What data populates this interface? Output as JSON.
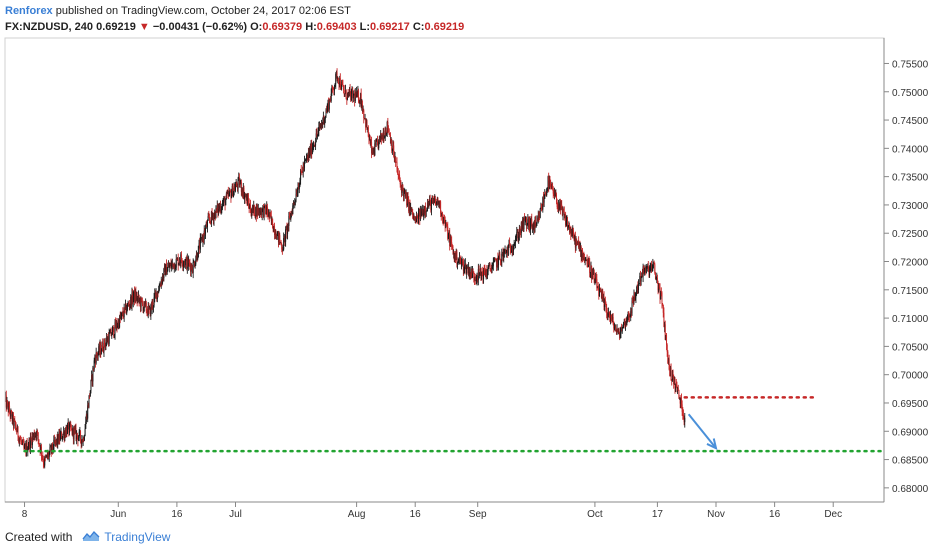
{
  "header": {
    "author": "Renforex",
    "published": "published on TradingView.com, October 24, 2017 02:06 EST",
    "symbol": "FX:NZDUSD, 240",
    "last": "0.69219",
    "change_arrow": "▼",
    "change": "−0.00431 (−0.62%)",
    "o_label": "O:",
    "o_val": "0.69379",
    "h_label": "H:",
    "h_val": "0.69403",
    "l_label": "L:",
    "l_val": "0.69217",
    "c_label": "C:",
    "c_val": "0.69219"
  },
  "footer": {
    "created_with": "Created with",
    "brand": "TradingView",
    "logo_icon": "tradingview-logo-icon"
  },
  "colors": {
    "up": "#1b1b1b",
    "down": "#c62828",
    "green_line": "#21a330",
    "red_line": "#c62828",
    "arrow": "#4a90d9",
    "grid": "#cfcfcf"
  },
  "chart_data": {
    "type": "candlestick",
    "ylim": [
      0.6775,
      0.7595
    ],
    "yticks": [
      "0.75500",
      "0.75000",
      "0.74500",
      "0.74000",
      "0.73500",
      "0.73000",
      "0.72500",
      "0.72000",
      "0.71500",
      "0.71000",
      "0.70500",
      "0.70000",
      "0.69500",
      "0.69000",
      "0.68500",
      "0.68000"
    ],
    "xticks": [
      "8",
      "Jun",
      "16",
      "Jul",
      "Aug",
      "16",
      "Sep",
      "Oct",
      "17",
      "Nov",
      "16",
      "Dec"
    ],
    "xtick_dates": [
      "2017-05-08",
      "2017-06-01",
      "2017-06-16",
      "2017-07-01",
      "2017-08-01",
      "2017-08-16",
      "2017-09-01",
      "2017-10-01",
      "2017-10-17",
      "2017-11-01",
      "2017-11-16",
      "2017-12-01"
    ],
    "xlim": [
      "2017-05-03",
      "2017-12-14"
    ],
    "price_path": [
      [
        "2017-05-03",
        0.6955
      ],
      [
        "2017-05-08",
        0.6865
      ],
      [
        "2017-05-11",
        0.69
      ],
      [
        "2017-05-13",
        0.6845
      ],
      [
        "2017-05-16",
        0.688
      ],
      [
        "2017-05-19",
        0.6905
      ],
      [
        "2017-05-23",
        0.6885
      ],
      [
        "2017-05-26",
        0.703
      ],
      [
        "2017-05-31",
        0.708
      ],
      [
        "2017-06-05",
        0.714
      ],
      [
        "2017-06-09",
        0.711
      ],
      [
        "2017-06-13",
        0.7185
      ],
      [
        "2017-06-17",
        0.7205
      ],
      [
        "2017-06-20",
        0.719
      ],
      [
        "2017-06-24",
        0.727
      ],
      [
        "2017-06-28",
        0.7305
      ],
      [
        "2017-07-02",
        0.734
      ],
      [
        "2017-07-05",
        0.729
      ],
      [
        "2017-07-09",
        0.729
      ],
      [
        "2017-07-13",
        0.7225
      ],
      [
        "2017-07-18",
        0.736
      ],
      [
        "2017-07-22",
        0.7425
      ],
      [
        "2017-07-24",
        0.746
      ],
      [
        "2017-07-27",
        0.753
      ],
      [
        "2017-07-29",
        0.7495
      ],
      [
        "2017-08-02",
        0.749
      ],
      [
        "2017-08-05",
        0.739
      ],
      [
        "2017-08-09",
        0.744
      ],
      [
        "2017-08-12",
        0.734
      ],
      [
        "2017-08-16",
        0.727
      ],
      [
        "2017-08-19",
        0.73
      ],
      [
        "2017-08-22",
        0.7305
      ],
      [
        "2017-08-26",
        0.721
      ],
      [
        "2017-08-31",
        0.7175
      ],
      [
        "2017-09-03",
        0.718
      ],
      [
        "2017-09-06",
        0.72
      ],
      [
        "2017-09-10",
        0.723
      ],
      [
        "2017-09-13",
        0.727
      ],
      [
        "2017-09-16",
        0.726
      ],
      [
        "2017-09-19",
        0.734
      ],
      [
        "2017-09-23",
        0.728
      ],
      [
        "2017-09-26",
        0.7235
      ],
      [
        "2017-09-29",
        0.72
      ],
      [
        "2017-10-03",
        0.713
      ],
      [
        "2017-10-07",
        0.707
      ],
      [
        "2017-10-10",
        0.711
      ],
      [
        "2017-10-13",
        0.718
      ],
      [
        "2017-10-16",
        0.719
      ],
      [
        "2017-10-18",
        0.7135
      ],
      [
        "2017-10-20",
        0.701
      ],
      [
        "2017-10-22",
        0.6975
      ],
      [
        "2017-10-24",
        0.6922
      ]
    ],
    "annotations": [
      {
        "type": "hline",
        "style": "dotted",
        "color": "green",
        "y": 0.6865,
        "x_from": "2017-05-08",
        "x_to": "2017-12-14"
      },
      {
        "type": "hline",
        "style": "dotted",
        "color": "red",
        "y": 0.696,
        "x_from": "2017-10-24",
        "x_to": "2017-11-27"
      },
      {
        "type": "arrow",
        "color": "blue",
        "from": [
          "2017-10-25",
          0.693
        ],
        "to": [
          "2017-11-01",
          0.687
        ]
      }
    ]
  }
}
